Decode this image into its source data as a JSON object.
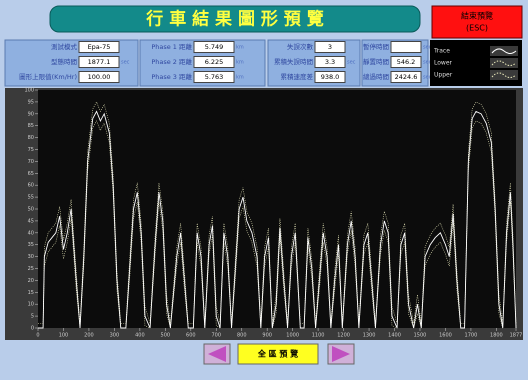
{
  "header": {
    "title": "行 車 結 果 圖 形 預 覽",
    "exit_button": [
      "結束預覽",
      "(ESC)"
    ]
  },
  "info_groups": [
    {
      "fields": [
        {
          "label": "測試模式",
          "value": "Epa-75"
        },
        {
          "label": "型態時間",
          "value": "1877.1",
          "unit": "sec"
        },
        {
          "label": "圖形上限值(Km/Hr)",
          "value": "100.00"
        }
      ]
    },
    {
      "fields": [
        {
          "label": "Phase 1 距離",
          "value": "5.749",
          "unit": "km"
        },
        {
          "label": "Phase 2 距離",
          "value": "6.225",
          "unit": "km"
        },
        {
          "label": "Phase 3 距離",
          "value": "5.763",
          "unit": "km"
        }
      ]
    },
    {
      "fields": [
        {
          "label": "失誤次數",
          "value": "3"
        },
        {
          "label": "累積失誤時間",
          "value": "3.3",
          "unit": "sec"
        },
        {
          "label": "累積速度差",
          "value": "938.0"
        }
      ]
    },
    {
      "fields": [
        {
          "label": "暫停時間",
          "value": "",
          "unit": "sec"
        },
        {
          "label": "靜置時間",
          "value": "546.2",
          "unit": "sec"
        },
        {
          "label": "總過時間",
          "value": "2424.6",
          "unit": "sec"
        }
      ]
    }
  ],
  "chart_data": {
    "type": "line",
    "x": [
      0,
      20,
      25,
      40,
      55,
      70,
      85,
      100,
      115,
      130,
      150,
      165,
      180,
      195,
      215,
      230,
      245,
      260,
      280,
      295,
      310,
      325,
      345,
      360,
      375,
      390,
      405,
      420,
      440,
      460,
      475,
      490,
      505,
      520,
      545,
      560,
      575,
      590,
      610,
      625,
      640,
      655,
      672,
      685,
      700,
      715,
      730,
      745,
      760,
      775,
      790,
      805,
      820,
      840,
      860,
      875,
      890,
      905,
      920,
      935,
      950,
      965,
      980,
      995,
      1010,
      1030,
      1045,
      1060,
      1075,
      1090,
      1105,
      1120,
      1135,
      1150,
      1165,
      1180,
      1195,
      1215,
      1230,
      1245,
      1260,
      1280,
      1295,
      1310,
      1325,
      1345,
      1360,
      1375,
      1390,
      1410,
      1425,
      1440,
      1455,
      1475,
      1490,
      1505,
      1520,
      1540,
      1560,
      1580,
      1600,
      1615,
      1630,
      1645,
      1660,
      1675,
      1690,
      1705,
      1720,
      1740,
      1760,
      1780,
      1795,
      1810,
      1825,
      1840,
      1855,
      1865,
      1877
    ],
    "series": [
      {
        "name": "Trace",
        "color": "#ffffff",
        "dash": false,
        "values": [
          0,
          0,
          30,
          36,
          38,
          40,
          47,
          33,
          40,
          50,
          20,
          0,
          30,
          70,
          88,
          91,
          87,
          90,
          82,
          60,
          20,
          0,
          0,
          25,
          50,
          57,
          40,
          5,
          0,
          35,
          57,
          45,
          10,
          0,
          30,
          40,
          20,
          0,
          0,
          40,
          30,
          0,
          35,
          43,
          5,
          0,
          40,
          30,
          0,
          25,
          50,
          55,
          45,
          40,
          30,
          0,
          30,
          38,
          0,
          10,
          42,
          20,
          0,
          30,
          40,
          0,
          0,
          38,
          25,
          0,
          20,
          40,
          30,
          0,
          20,
          35,
          0,
          35,
          45,
          30,
          0,
          35,
          40,
          20,
          0,
          35,
          45,
          40,
          5,
          0,
          35,
          40,
          10,
          0,
          10,
          0,
          30,
          35,
          38,
          40,
          35,
          30,
          48,
          20,
          0,
          0,
          70,
          88,
          91,
          90,
          86,
          78,
          50,
          10,
          0,
          40,
          57,
          35,
          0
        ]
      },
      {
        "name": "Lower",
        "color": "#f0f0c0",
        "dash": true,
        "values": [
          0,
          0,
          26,
          32,
          34,
          36,
          43,
          29,
          36,
          46,
          16,
          0,
          26,
          66,
          84,
          87,
          83,
          86,
          78,
          56,
          16,
          0,
          0,
          21,
          46,
          53,
          36,
          1,
          0,
          31,
          53,
          41,
          6,
          0,
          26,
          36,
          16,
          0,
          0,
          36,
          26,
          0,
          31,
          39,
          1,
          0,
          36,
          26,
          0,
          21,
          46,
          51,
          41,
          36,
          26,
          0,
          26,
          34,
          0,
          6,
          38,
          16,
          0,
          26,
          36,
          0,
          0,
          34,
          21,
          0,
          16,
          36,
          26,
          0,
          16,
          31,
          0,
          31,
          41,
          26,
          0,
          31,
          36,
          16,
          0,
          31,
          41,
          36,
          1,
          0,
          31,
          36,
          6,
          0,
          6,
          0,
          26,
          31,
          34,
          36,
          31,
          26,
          44,
          16,
          0,
          0,
          66,
          84,
          87,
          86,
          82,
          74,
          46,
          6,
          0,
          36,
          53,
          31,
          0
        ]
      },
      {
        "name": "Upper",
        "color": "#f0f0c0",
        "dash": true,
        "values": [
          2,
          2,
          34,
          40,
          42,
          44,
          51,
          37,
          44,
          54,
          24,
          2,
          34,
          74,
          92,
          95,
          91,
          94,
          86,
          64,
          24,
          2,
          2,
          29,
          54,
          61,
          44,
          9,
          2,
          39,
          61,
          49,
          14,
          2,
          34,
          44,
          24,
          2,
          2,
          44,
          34,
          2,
          39,
          47,
          9,
          2,
          44,
          34,
          2,
          29,
          54,
          59,
          49,
          44,
          34,
          2,
          34,
          42,
          2,
          14,
          46,
          24,
          2,
          34,
          44,
          2,
          2,
          42,
          29,
          2,
          24,
          44,
          34,
          2,
          24,
          39,
          2,
          39,
          49,
          34,
          2,
          39,
          44,
          24,
          2,
          39,
          49,
          44,
          9,
          2,
          39,
          44,
          14,
          2,
          14,
          2,
          34,
          39,
          42,
          44,
          39,
          34,
          52,
          24,
          2,
          2,
          74,
          92,
          95,
          94,
          90,
          82,
          54,
          14,
          2,
          44,
          61,
          39,
          2
        ]
      }
    ],
    "xlim": [
      0,
      1877
    ],
    "xticks": [
      0,
      100,
      200,
      300,
      400,
      500,
      600,
      700,
      800,
      900,
      1000,
      1100,
      1200,
      1300,
      1400,
      1500,
      1600,
      1700,
      1800,
      1877
    ],
    "ylim": [
      0,
      100
    ],
    "yticks": [
      0,
      5,
      10,
      15,
      20,
      25,
      30,
      35,
      40,
      45,
      50,
      55,
      60,
      65,
      70,
      75,
      80,
      85,
      90,
      95,
      100
    ]
  },
  "footer": {
    "center_button": "全 區 預 覽"
  }
}
